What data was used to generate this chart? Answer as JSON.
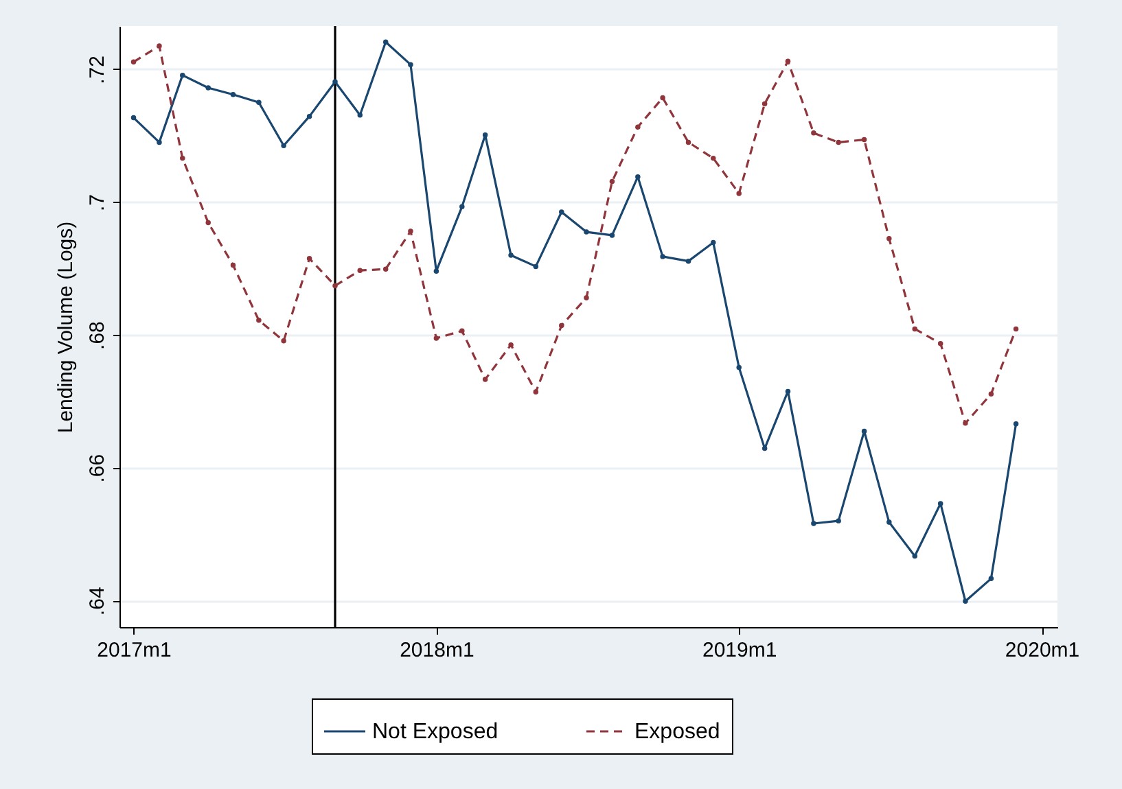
{
  "chart_data": {
    "type": "line",
    "ylabel": "Lending Volume (Logs)",
    "x": [
      "2017-01",
      "2017-02",
      "2017-03",
      "2017-04",
      "2017-05",
      "2017-06",
      "2017-07",
      "2017-08",
      "2017-09",
      "2017-10",
      "2017-11",
      "2017-12",
      "2018-01",
      "2018-02",
      "2018-03",
      "2018-04",
      "2018-05",
      "2018-06",
      "2018-07",
      "2018-08",
      "2018-09",
      "2018-10",
      "2018-11",
      "2018-12",
      "2019-01",
      "2019-02",
      "2019-03",
      "2019-04",
      "2019-05",
      "2019-06",
      "2019-07",
      "2019-08",
      "2019-09",
      "2019-10",
      "2019-11",
      "2019-12"
    ],
    "series": [
      {
        "name": "Not Exposed",
        "color": "#1a476f",
        "line_style": "solid",
        "values": [
          0.7127,
          0.709,
          0.7191,
          0.7172,
          0.7162,
          0.715,
          0.7085,
          0.7129,
          0.7181,
          0.7131,
          0.7241,
          0.7207,
          0.6896,
          0.6993,
          0.7101,
          0.692,
          0.6903,
          0.6985,
          0.6955,
          0.695,
          0.7038,
          0.6918,
          0.6911,
          0.6939,
          0.6751,
          0.6629,
          0.6715,
          0.6516,
          0.652,
          0.6655,
          0.6518,
          0.6467,
          0.6546,
          0.6399,
          0.6433,
          0.6666
        ]
      },
      {
        "name": "Exposed",
        "color": "#90353b",
        "line_style": "dashed",
        "values": [
          0.7211,
          0.7235,
          0.7066,
          0.6969,
          0.6905,
          0.6822,
          0.6791,
          0.6915,
          0.6874,
          0.6897,
          0.6899,
          0.6956,
          0.6795,
          0.6806,
          0.6733,
          0.6785,
          0.6714,
          0.6814,
          0.6856,
          0.7031,
          0.7113,
          0.7157,
          0.709,
          0.7066,
          0.7013,
          0.7148,
          0.7212,
          0.7104,
          0.709,
          0.7094,
          0.6945,
          0.6809,
          0.6787,
          0.6667,
          0.6711,
          0.6809
        ]
      }
    ],
    "xlim": [
      "2016-12-15",
      "2020-01-20"
    ],
    "xticks": [
      {
        "value": "2017-01",
        "label": "2017m1"
      },
      {
        "value": "2018-01",
        "label": "2018m1"
      },
      {
        "value": "2019-01",
        "label": "2019m1"
      },
      {
        "value": "2020-01",
        "label": "2020m1"
      }
    ],
    "ylim": [
      0.636,
      0.7265
    ],
    "yticks": [
      {
        "value": 0.64,
        "label": ".64"
      },
      {
        "value": 0.66,
        "label": ".66"
      },
      {
        "value": 0.68,
        "label": ".68"
      },
      {
        "value": 0.7,
        "label": ".7"
      },
      {
        "value": 0.72,
        "label": ".72"
      }
    ],
    "ref_lines": [
      {
        "axis": "x",
        "value": "2017-09",
        "color": "#000000"
      }
    ],
    "grid": "y",
    "legend": "bottom",
    "marker": "circle"
  }
}
